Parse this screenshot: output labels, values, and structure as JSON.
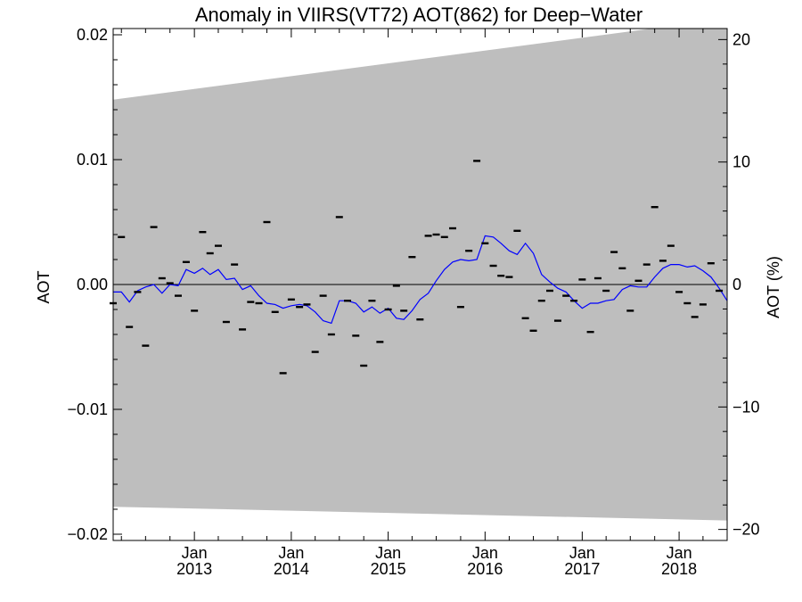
{
  "chart_data": {
    "type": "line",
    "title": "Anomaly in VIIRS(VT72) AOT(862) for Deep−Water",
    "ylabel": "AOT",
    "y2label": "AOT (%)",
    "xlim": [
      "2012-03-01",
      "2018-07-01"
    ],
    "ylim": [
      -0.0205,
      0.0205
    ],
    "y2lim": [
      -20.9,
      20.9
    ],
    "y_ticks": [
      {
        "value": 0.02,
        "label": "0.02"
      },
      {
        "value": 0.01,
        "label": "0.01"
      },
      {
        "value": 0.0,
        "label": "0.00"
      },
      {
        "value": -0.01,
        "label": "−0.01"
      },
      {
        "value": -0.02,
        "label": "−0.02"
      }
    ],
    "y2_ticks": [
      {
        "value": 20,
        "label": "20"
      },
      {
        "value": 10,
        "label": "10"
      },
      {
        "value": 0,
        "label": "0"
      },
      {
        "value": -10,
        "label": "−10"
      },
      {
        "value": -20,
        "label": "−20"
      }
    ],
    "x_ticks": [
      {
        "date": "2013-01-01",
        "label": "Jan",
        "year": "2013"
      },
      {
        "date": "2014-01-01",
        "label": "Jan",
        "year": "2014"
      },
      {
        "date": "2015-01-01",
        "label": "Jan",
        "year": "2015"
      },
      {
        "date": "2016-01-01",
        "label": "Jan",
        "year": "2016"
      },
      {
        "date": "2017-01-01",
        "label": "Jan",
        "year": "2017"
      },
      {
        "date": "2018-01-01",
        "label": "Jan",
        "year": "2018"
      }
    ],
    "zero_line": 0,
    "envelope": {
      "dates": [
        "2012-03-01",
        "2018-07-01"
      ],
      "upper": [
        0.0148,
        0.0213
      ],
      "lower": [
        -0.0178,
        -0.0189
      ],
      "color": "#bebebe"
    },
    "series": [
      {
        "type": "scatter",
        "marker": "dash",
        "color": "#000000",
        "points": [
          [
            "2012-03-01",
            -0.0015
          ],
          [
            "2012-04-01",
            0.0038
          ],
          [
            "2012-05-01",
            -0.0034
          ],
          [
            "2012-06-01",
            -0.0006
          ],
          [
            "2012-07-01",
            -0.0049
          ],
          [
            "2012-08-01",
            0.0046
          ],
          [
            "2012-09-01",
            0.0005
          ],
          [
            "2012-10-01",
            0.0001
          ],
          [
            "2012-11-01",
            -0.0009
          ],
          [
            "2012-12-01",
            0.0018
          ],
          [
            "2013-01-01",
            -0.0021
          ],
          [
            "2013-02-01",
            0.0042
          ],
          [
            "2013-03-01",
            0.0025
          ],
          [
            "2013-04-01",
            0.0031
          ],
          [
            "2013-05-01",
            -0.003
          ],
          [
            "2013-06-01",
            0.0016
          ],
          [
            "2013-07-01",
            -0.0036
          ],
          [
            "2013-08-01",
            -0.0014
          ],
          [
            "2013-09-01",
            -0.0015
          ],
          [
            "2013-10-01",
            0.005
          ],
          [
            "2013-11-01",
            -0.0022
          ],
          [
            "2013-12-01",
            -0.0071
          ],
          [
            "2014-01-01",
            -0.0012
          ],
          [
            "2014-02-01",
            -0.0018
          ],
          [
            "2014-03-01",
            -0.0016
          ],
          [
            "2014-04-01",
            -0.0054
          ],
          [
            "2014-05-01",
            -0.0009
          ],
          [
            "2014-06-01",
            -0.004
          ],
          [
            "2014-07-01",
            0.0054
          ],
          [
            "2014-08-01",
            -0.0013
          ],
          [
            "2014-09-01",
            -0.0041
          ],
          [
            "2014-10-01",
            -0.0065
          ],
          [
            "2014-11-01",
            -0.0013
          ],
          [
            "2014-12-01",
            -0.0046
          ],
          [
            "2015-01-01",
            -0.002
          ],
          [
            "2015-02-01",
            -0.0001
          ],
          [
            "2015-03-01",
            -0.0021
          ],
          [
            "2015-04-01",
            0.0022
          ],
          [
            "2015-05-01",
            -0.0028
          ],
          [
            "2015-06-01",
            0.0039
          ],
          [
            "2015-07-01",
            0.004
          ],
          [
            "2015-08-01",
            0.0038
          ],
          [
            "2015-09-01",
            0.0045
          ],
          [
            "2015-10-01",
            -0.0018
          ],
          [
            "2015-11-01",
            0.0027
          ],
          [
            "2015-12-01",
            0.0099
          ],
          [
            "2016-01-01",
            0.0033
          ],
          [
            "2016-02-01",
            0.0015
          ],
          [
            "2016-03-01",
            0.0007
          ],
          [
            "2016-04-01",
            0.0006
          ],
          [
            "2016-05-01",
            0.0043
          ],
          [
            "2016-06-01",
            -0.0027
          ],
          [
            "2016-07-01",
            -0.0037
          ],
          [
            "2016-08-01",
            -0.0013
          ],
          [
            "2016-09-01",
            -0.0005
          ],
          [
            "2016-10-01",
            -0.0029
          ],
          [
            "2016-11-01",
            -0.0009
          ],
          [
            "2016-12-01",
            -0.0013
          ],
          [
            "2017-01-01",
            0.0004
          ],
          [
            "2017-02-01",
            -0.0038
          ],
          [
            "2017-03-01",
            0.0005
          ],
          [
            "2017-04-01",
            -0.0005
          ],
          [
            "2017-05-01",
            0.0026
          ],
          [
            "2017-06-01",
            0.0013
          ],
          [
            "2017-07-01",
            -0.0021
          ],
          [
            "2017-08-01",
            0.0003
          ],
          [
            "2017-09-01",
            0.0016
          ],
          [
            "2017-10-01",
            0.0062
          ],
          [
            "2017-11-01",
            0.0019
          ],
          [
            "2017-12-01",
            0.0031
          ],
          [
            "2018-01-01",
            -0.0006
          ],
          [
            "2018-02-01",
            -0.0015
          ],
          [
            "2018-03-01",
            -0.0026
          ],
          [
            "2018-04-01",
            -0.0016
          ],
          [
            "2018-05-01",
            0.0017
          ],
          [
            "2018-06-01",
            -0.0005
          ]
        ]
      },
      {
        "type": "line",
        "color": "#0000ff",
        "points": [
          [
            "2012-03-01",
            -0.0006
          ],
          [
            "2012-04-01",
            -0.0006
          ],
          [
            "2012-05-01",
            -0.0014
          ],
          [
            "2012-06-01",
            -0.0005
          ],
          [
            "2012-07-01",
            -0.0002
          ],
          [
            "2012-08-01",
            0.0
          ],
          [
            "2012-09-01",
            -0.0007
          ],
          [
            "2012-10-01",
            0.0
          ],
          [
            "2012-11-01",
            -0.0001
          ],
          [
            "2012-12-01",
            0.0012
          ],
          [
            "2013-01-01",
            0.0009
          ],
          [
            "2013-02-01",
            0.0013
          ],
          [
            "2013-03-01",
            0.0008
          ],
          [
            "2013-04-01",
            0.0012
          ],
          [
            "2013-05-01",
            0.0004
          ],
          [
            "2013-06-01",
            0.0005
          ],
          [
            "2013-07-01",
            -0.0004
          ],
          [
            "2013-08-01",
            -0.0001
          ],
          [
            "2013-09-01",
            -0.0009
          ],
          [
            "2013-10-01",
            -0.0015
          ],
          [
            "2013-11-01",
            -0.0016
          ],
          [
            "2013-12-01",
            -0.0019
          ],
          [
            "2014-01-01",
            -0.0017
          ],
          [
            "2014-02-01",
            -0.0016
          ],
          [
            "2014-03-01",
            -0.0017
          ],
          [
            "2014-04-01",
            -0.0022
          ],
          [
            "2014-05-01",
            -0.0029
          ],
          [
            "2014-06-01",
            -0.0031
          ],
          [
            "2014-07-01",
            -0.0013
          ],
          [
            "2014-08-01",
            -0.0013
          ],
          [
            "2014-09-01",
            -0.0015
          ],
          [
            "2014-10-01",
            -0.0022
          ],
          [
            "2014-11-01",
            -0.0018
          ],
          [
            "2014-12-01",
            -0.0023
          ],
          [
            "2015-01-01",
            -0.0019
          ],
          [
            "2015-02-01",
            -0.0027
          ],
          [
            "2015-03-01",
            -0.0028
          ],
          [
            "2015-04-01",
            -0.0021
          ],
          [
            "2015-05-01",
            -0.0012
          ],
          [
            "2015-06-01",
            -0.0007
          ],
          [
            "2015-07-01",
            0.0003
          ],
          [
            "2015-08-01",
            0.0012
          ],
          [
            "2015-09-01",
            0.0018
          ],
          [
            "2015-10-01",
            0.002
          ],
          [
            "2015-11-01",
            0.0019
          ],
          [
            "2015-12-01",
            0.002
          ],
          [
            "2016-01-01",
            0.0039
          ],
          [
            "2016-02-01",
            0.0038
          ],
          [
            "2016-03-01",
            0.0033
          ],
          [
            "2016-04-01",
            0.0027
          ],
          [
            "2016-05-01",
            0.0024
          ],
          [
            "2016-06-01",
            0.0033
          ],
          [
            "2016-07-01",
            0.0025
          ],
          [
            "2016-08-01",
            0.0008
          ],
          [
            "2016-09-01",
            0.0002
          ],
          [
            "2016-10-01",
            -0.0003
          ],
          [
            "2016-11-01",
            -0.0006
          ],
          [
            "2016-12-01",
            -0.0013
          ],
          [
            "2017-01-01",
            -0.0019
          ],
          [
            "2017-02-01",
            -0.0015
          ],
          [
            "2017-03-01",
            -0.0015
          ],
          [
            "2017-04-01",
            -0.0013
          ],
          [
            "2017-05-01",
            -0.0012
          ],
          [
            "2017-06-01",
            -0.0004
          ],
          [
            "2017-07-01",
            -0.0001
          ],
          [
            "2017-08-01",
            -0.0002
          ],
          [
            "2017-09-01",
            -0.0002
          ],
          [
            "2017-10-01",
            0.0006
          ],
          [
            "2017-11-01",
            0.0013
          ],
          [
            "2017-12-01",
            0.0016
          ],
          [
            "2018-01-01",
            0.0016
          ],
          [
            "2018-02-01",
            0.0014
          ],
          [
            "2018-03-01",
            0.0015
          ],
          [
            "2018-04-01",
            0.0011
          ],
          [
            "2018-05-01",
            0.0006
          ],
          [
            "2018-06-01",
            -0.0003
          ],
          [
            "2018-07-01",
            -0.0013
          ]
        ]
      }
    ]
  }
}
